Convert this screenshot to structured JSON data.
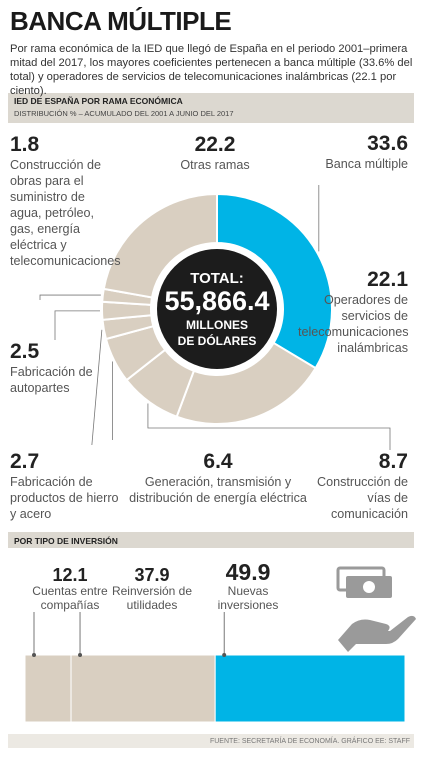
{
  "header": {
    "title": "BANCA MÚLTIPLE",
    "subtitle": "Por rama económica de la IED que llegó de España en el periodo 2001–primera mitad del 2017, los mayores coeficientes pertenecen a banca múltiple (33.6% del total) y operadores de servicios de telecomunicaciones inalámbricas (22.1 por ciento)."
  },
  "chart_data": [
    {
      "type": "pie",
      "donut": true,
      "title": "IED DE ESPAÑA POR RAMA ECONÓMICA",
      "subtitle": "DISTRIBUCIÓN % – ACUMULADO DEL 2001 A JUNIO DEL 2017",
      "categories": [
        "Banca múltiple",
        "Operadores de servicios de telecomunicaciones inalámbricas",
        "Construcción de vías de comunicación",
        "Generación, transmisión y distribución de energía eléctrica",
        "Fabricación de productos de hierro y acero",
        "Fabricación de autopartes",
        "Construcción de obras para el suministro de agua, petróleo, gas, energía eléctrica y telecomunicaciones",
        "Otras ramas"
      ],
      "values": [
        33.6,
        22.1,
        8.7,
        6.4,
        2.7,
        2.5,
        1.8,
        22.2
      ],
      "colors": [
        "#00b4e6",
        "#d9cfc1",
        "#d9cfc1",
        "#d9cfc1",
        "#d9cfc1",
        "#d9cfc1",
        "#d9cfc1",
        "#d9cfc1"
      ],
      "center_label": [
        "TOTAL:",
        "55,866.4",
        "MILLONES",
        "DE DÓLARES"
      ]
    },
    {
      "type": "bar",
      "orientation": "horizontal",
      "stacked": true,
      "title": "POR TIPO DE INVERSIÓN",
      "series": [
        {
          "name": "Cuentas entre compañías",
          "color": "#d9cfc1",
          "values": [
            12.1
          ]
        },
        {
          "name": "Reinversión de utilidades",
          "color": "#d9cfc1",
          "values": [
            37.9
          ]
        },
        {
          "name": "Nuevas inversiones",
          "color": "#00b4e6",
          "values": [
            49.9
          ]
        }
      ]
    }
  ],
  "source": "FUENTE: SECRETARÍA DE ECONOMÍA. GRÁFICO EE: STAFF"
}
